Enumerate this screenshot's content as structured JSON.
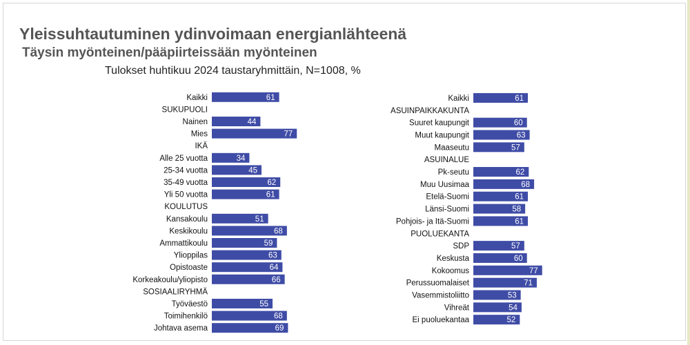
{
  "title": "Yleissuhtautuminen ydinvoimaan energianlähteenä",
  "subtitle": "Täysin myönteinen/pääpiirteissään myönteinen",
  "subtitle2": "Tulokset huhtikuu 2024 taustaryhmittäin, N=1008, %",
  "colors": {
    "bar": "#3f4ca6",
    "bar_text": "#ffffff",
    "label": "#111111"
  },
  "chart_data": [
    {
      "type": "bar",
      "orientation": "horizontal",
      "xlim": [
        0,
        100
      ],
      "categories": [
        "Kaikki",
        "SUKUPUOLI",
        "Nainen",
        "Mies",
        "IKÄ",
        "Alle 25 vuotta",
        "25-34 vuotta",
        "35-49 vuotta",
        "Yli 50 vuotta",
        "KOULUTUS",
        "Kansakoulu",
        "Keskikoulu",
        "Ammattikoulu",
        "Ylioppilas",
        "Opistoaste",
        "Korkeakoulu/yliopisto",
        "SOSIAALIRYHMÄ",
        "Työväestö",
        "Toimihenkilö",
        "Johtava asema"
      ],
      "values": [
        61,
        null,
        44,
        77,
        null,
        34,
        45,
        62,
        61,
        null,
        51,
        68,
        59,
        63,
        64,
        66,
        null,
        55,
        68,
        69
      ]
    },
    {
      "type": "bar",
      "orientation": "horizontal",
      "xlim": [
        0,
        100
      ],
      "categories": [
        "Kaikki",
        "ASUINPAIKKAKUNTA",
        "Suuret kaupungit",
        "Muut kaupungit",
        "Maaseutu",
        "ASUINALUE",
        "Pk-seutu",
        "Muu Uusimaa",
        "Etelä-Suomi",
        "Länsi-Suomi",
        "Pohjois- ja Itä-Suomi",
        "PUOLUEKANTA",
        "SDP",
        "Keskusta",
        "Kokoomus",
        "Perussuomalaiset",
        "Vasemmistoliitto",
        "Vihreät",
        "Ei puoluekantaa"
      ],
      "values": [
        61,
        null,
        60,
        63,
        57,
        null,
        62,
        68,
        61,
        58,
        61,
        null,
        57,
        60,
        77,
        71,
        53,
        54,
        52
      ]
    }
  ]
}
